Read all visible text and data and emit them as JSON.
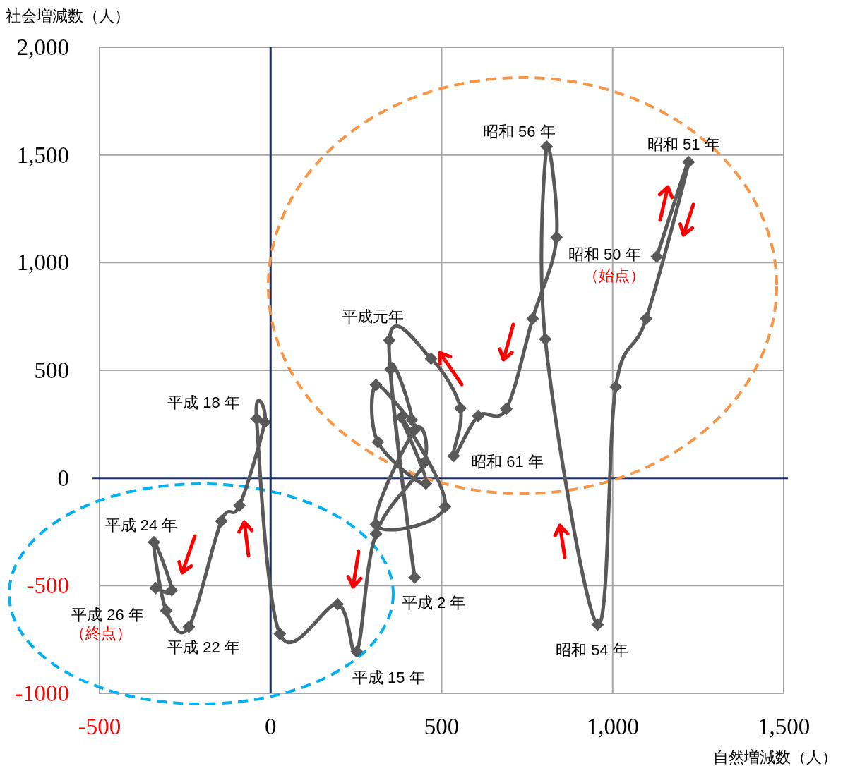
{
  "chart_data": {
    "type": "line",
    "xlabel": "自然増減数（人）",
    "ylabel": "社会増減数（人）",
    "xlim": [
      -500,
      1500
    ],
    "ylim": [
      -1000,
      2000
    ],
    "xticks": [
      {
        "value": -500,
        "label": "-500"
      },
      0,
      {
        "value": 500,
        "label": "500"
      },
      {
        "value": 1000,
        "label": "1,000"
      },
      {
        "value": 1500,
        "label": "1,500"
      }
    ],
    "yticks": [
      {
        "value": 2000,
        "label": "2,000"
      },
      {
        "value": 1500,
        "label": "1,500"
      },
      {
        "value": 1000,
        "label": "1,000"
      },
      {
        "value": 500,
        "label": "500"
      },
      0,
      {
        "value": -500,
        "label": "-500"
      },
      {
        "value": -1000,
        "label": "-1000"
      }
    ],
    "grid": true,
    "marker": "diamond",
    "line_style": "solid",
    "series": [
      {
        "color": "#595959",
        "x": [
          1129,
          1222,
          1098,
          1009,
          956,
          803,
          807,
          836,
          766,
          689,
          607,
          535,
          555,
          469,
          347,
          421,
          351,
          413,
          308,
          314,
          454,
          382,
          510,
          308,
          423,
          448,
          308,
          252,
          196,
          27,
          -41,
          -17,
          -91,
          -144,
          -239,
          -305,
          -341,
          -289,
          -336
        ],
        "values": [
          1028,
          1467,
          740,
          423,
          -681,
          645,
          1539,
          1117,
          740,
          321,
          288,
          102,
          324,
          554,
          639,
          -462,
          504,
          269,
          432,
          167,
          -26,
          282,
          -134,
          -216,
          226,
          69,
          -259,
          -806,
          -586,
          -724,
          275,
          259,
          -128,
          -200,
          -691,
          -616,
          -298,
          -521,
          -511
        ]
      }
    ],
    "annotations": [
      {
        "text": "昭和 56 年",
        "x": 807,
        "y": 1539
      },
      {
        "text": "昭和 51 年",
        "x": 1222,
        "y": 1467
      },
      {
        "text": "昭和 50 年",
        "x": 1129,
        "y": 1028
      },
      {
        "text": "（始点）",
        "x": 1129,
        "y": 1028
      },
      {
        "text": "昭和 54 年",
        "x": 956,
        "y": -681
      },
      {
        "text": "昭和 61 年",
        "x": 535,
        "y": 102
      },
      {
        "text": "平成元年",
        "x": 347,
        "y": 639
      },
      {
        "text": "平成 2 年",
        "x": 421,
        "y": -462
      },
      {
        "text": "平成 15 年",
        "x": 252,
        "y": -806
      },
      {
        "text": "平成 18 年",
        "x": -41,
        "y": 275
      },
      {
        "text": "平成 22 年",
        "x": -239,
        "y": -691
      },
      {
        "text": "平成 24 年",
        "x": -341,
        "y": -298
      },
      {
        "text": "平成 26 年",
        "x": -336,
        "y": -511
      },
      {
        "text": "（終点）",
        "x": -336,
        "y": -511
      }
    ]
  }
}
